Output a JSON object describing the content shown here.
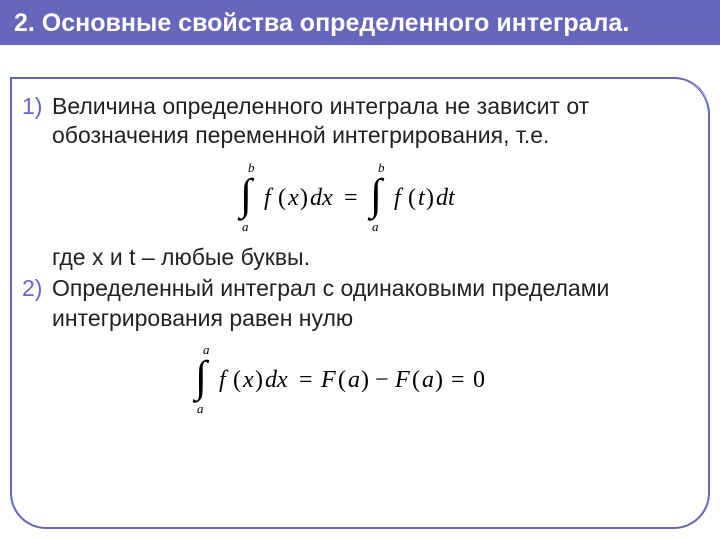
{
  "header": {
    "title": "2. Основные свойства определенного интеграла.",
    "bg_color": "#6666bb",
    "text_color": "#ffffff",
    "fontsize": 25
  },
  "body": {
    "text_color": "#222222",
    "accent_color": "#6666cc",
    "fontsize": 23
  },
  "items": [
    {
      "num": "1)",
      "text": "Величина определенного интеграла не зависит от обозначения переменной интегрирования, т.е.",
      "formula": {
        "type": "equation",
        "display": "integral_a^b f(x) dx = integral_a^b f(t) dt",
        "lower_limit": "a",
        "upper_limit": "b",
        "lhs_integrand": "f(x)dx",
        "rhs_integrand": "f(t)dt",
        "font_family": "serif-italic",
        "fontsize": 24,
        "color": "#000000"
      },
      "after_text": "где x и t – любые буквы."
    },
    {
      "num": "2)",
      "text": "Определенный интеграл с одинаковыми пределами интегрирования равен нулю",
      "formula": {
        "type": "equation",
        "display": "integral_a^a f(x) dx = F(a) - F(a) = 0",
        "lower_limit": "a",
        "upper_limit": "a",
        "integrand": "f(x)dx",
        "rhs": "F(a) − F(a) = 0",
        "font_family": "serif-italic",
        "fontsize": 24,
        "color": "#000000"
      }
    }
  ]
}
